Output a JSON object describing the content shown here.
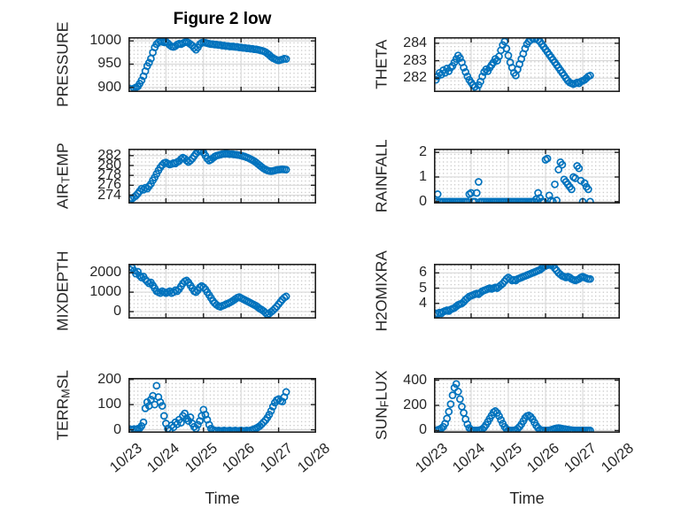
{
  "figure": {
    "title": "Figure 2 low",
    "x_axis_label": "Time",
    "x_tick_labels": [
      "10/23",
      "10/24",
      "10/25",
      "10/26",
      "10/27",
      "10/28"
    ],
    "x_tick_values": [
      0,
      1,
      2,
      3,
      4,
      5
    ],
    "x_unit": "days since 10/23 00:00",
    "colors": {
      "marker": "#0072BD",
      "grid_major": "#d8d8d8",
      "grid_minor_dots": "#b9b9b9",
      "axis_box": "#1f1f1f",
      "text": "#262626"
    }
  },
  "chart_data": [
    {
      "type": "scatter",
      "name": "PRESSURE",
      "ylabel": "PRESSURE",
      "ylabel_parts": [
        {
          "text": "PRESSURE",
          "sub": false
        }
      ],
      "yticks": [
        900,
        950,
        1000
      ],
      "ylim": [
        890,
        1008
      ],
      "xlim": [
        0,
        5
      ],
      "x_start": 0.05,
      "x_step": 0.05,
      "y": [
        897,
        895,
        898,
        900,
        902,
        908,
        915,
        924,
        935,
        946,
        953,
        962,
        975,
        986,
        993,
        997,
        999,
        998,
        997,
        998,
        995,
        991,
        988,
        987,
        989,
        992,
        994,
        993,
        995,
        997,
        998,
        996,
        993,
        990,
        985,
        981,
        986,
        993,
        996,
        997,
        996,
        995,
        994,
        993,
        993,
        992,
        992,
        991,
        991,
        990,
        990,
        989,
        989,
        988,
        988,
        988,
        987,
        987,
        986,
        986,
        985,
        985,
        984,
        984,
        983,
        983,
        982,
        982,
        981,
        980,
        979,
        978,
        976,
        973,
        970,
        966,
        963,
        961,
        959,
        958,
        959,
        960,
        962,
        961
      ]
    },
    {
      "type": "scatter",
      "name": "THETA",
      "ylabel": "THETA",
      "ylabel_parts": [
        {
          "text": "THETA",
          "sub": false
        }
      ],
      "yticks": [
        282,
        283,
        284
      ],
      "ylim": [
        281.2,
        284.35
      ],
      "xlim": [
        0,
        5
      ],
      "x_start": 0.05,
      "x_step": 0.05,
      "y": [
        281.9,
        282.1,
        282.3,
        282.2,
        282.45,
        282.3,
        282.55,
        282.4,
        282.6,
        282.7,
        282.9,
        283.1,
        283.3,
        283.15,
        282.9,
        282.6,
        282.35,
        282.1,
        281.9,
        281.75,
        281.6,
        281.5,
        281.35,
        281.6,
        281.8,
        282.1,
        282.35,
        282.5,
        282.4,
        282.6,
        282.75,
        282.9,
        283.1,
        283.0,
        283.25,
        283.6,
        283.9,
        284.1,
        283.7,
        283.3,
        282.9,
        282.6,
        282.3,
        282.15,
        282.5,
        282.8,
        283.1,
        283.4,
        283.7,
        283.95,
        284.1,
        284.2,
        284.3,
        284.25,
        284.3,
        284.2,
        284.1,
        283.95,
        283.8,
        283.65,
        283.5,
        283.35,
        283.2,
        283.05,
        282.9,
        282.75,
        282.6,
        282.45,
        282.3,
        282.15,
        282.0,
        281.85,
        281.75,
        281.7,
        281.65,
        281.7,
        281.75,
        281.7,
        281.8,
        281.85,
        281.9,
        282.0,
        282.1,
        282.15
      ]
    },
    {
      "type": "scatter",
      "name": "AIR_TEMP",
      "ylabel": "AIR_TEMP",
      "ylabel_parts": [
        {
          "text": "AIR",
          "sub": false
        },
        {
          "text": "T",
          "sub": true
        },
        {
          "text": "EMP",
          "sub": false
        }
      ],
      "yticks": [
        274,
        276,
        278,
        280,
        282
      ],
      "ylim": [
        272.3,
        283.4
      ],
      "xlim": [
        0,
        5
      ],
      "x_start": 0.05,
      "x_step": 0.05,
      "y": [
        273.4,
        273.3,
        273.6,
        273.9,
        274.3,
        274.8,
        275.3,
        275.1,
        275.5,
        275.3,
        275.8,
        276.3,
        277.0,
        277.6,
        278.3,
        279.0,
        279.6,
        280.1,
        280.5,
        280.6,
        280.4,
        280.2,
        280.3,
        280.5,
        280.4,
        280.7,
        280.9,
        281.3,
        281.6,
        281.4,
        281.0,
        280.7,
        281.0,
        281.4,
        281.9,
        282.4,
        282.8,
        283.0,
        282.9,
        282.6,
        282.0,
        281.4,
        281.0,
        281.2,
        281.5,
        281.8,
        282.0,
        282.1,
        282.2,
        282.3,
        282.35,
        282.4,
        282.35,
        282.3,
        282.3,
        282.25,
        282.2,
        282.15,
        282.1,
        282.0,
        281.9,
        281.8,
        281.65,
        281.5,
        281.3,
        281.1,
        280.9,
        280.6,
        280.3,
        280.0,
        279.7,
        279.4,
        279.2,
        279.0,
        278.9,
        278.85,
        278.9,
        279.0,
        279.1,
        279.15,
        279.2,
        279.25,
        279.2,
        279.15
      ]
    },
    {
      "type": "scatter",
      "name": "RAINFALL",
      "ylabel": "RAINFALL",
      "ylabel_parts": [
        {
          "text": "RAINFALL",
          "sub": false
        }
      ],
      "yticks": [
        0,
        1,
        2
      ],
      "ylim": [
        -0.08,
        2.15
      ],
      "xlim": [
        0,
        5
      ],
      "x_start": 0.05,
      "x_step": 0.05,
      "y": [
        0,
        0.3,
        0,
        0,
        0,
        0,
        0,
        0,
        0,
        0,
        0,
        0,
        0,
        0,
        0,
        0,
        0,
        0,
        0.3,
        0.35,
        0,
        0,
        0.35,
        0.8,
        0,
        0,
        0,
        0,
        0,
        0,
        0,
        0,
        0,
        0,
        0,
        0,
        0,
        0,
        0,
        0,
        0,
        0,
        0,
        0,
        0,
        0,
        0,
        0,
        0,
        0,
        0,
        0,
        0,
        0,
        0.1,
        0.35,
        0.15,
        0,
        0,
        1.7,
        1.75,
        0.25,
        0.05,
        0,
        0.7,
        0.05,
        1.3,
        1.6,
        1.5,
        0.9,
        0.8,
        0.7,
        0.6,
        0.5,
        1.0,
        0.95,
        1.45,
        1.35,
        0.85,
        0,
        0.75,
        0.6,
        0.5,
        0
      ]
    },
    {
      "type": "scatter",
      "name": "MIXDEPTH",
      "ylabel": "MIXDEPTH",
      "ylabel_parts": [
        {
          "text": "MIXDEPTH",
          "sub": false
        }
      ],
      "yticks": [
        0,
        1000,
        2000
      ],
      "ylim": [
        -360,
        2460
      ],
      "xlim": [
        0,
        5
      ],
      "x_start": 0.05,
      "x_step": 0.05,
      "y": [
        2150,
        2250,
        2100,
        1950,
        2050,
        1850,
        1750,
        1800,
        1650,
        1550,
        1450,
        1500,
        1350,
        1200,
        1050,
        1000,
        950,
        1050,
        1000,
        950,
        1000,
        1050,
        950,
        1000,
        1100,
        1050,
        1150,
        1300,
        1450,
        1550,
        1600,
        1500,
        1350,
        1200,
        1050,
        1000,
        1100,
        1250,
        1320,
        1250,
        1150,
        1000,
        850,
        700,
        550,
        430,
        350,
        280,
        250,
        300,
        330,
        380,
        420,
        470,
        520,
        580,
        650,
        720,
        750,
        700,
        650,
        600,
        550,
        500,
        450,
        400,
        350,
        300,
        220,
        150,
        100,
        30,
        -60,
        -150,
        -100,
        -20,
        60,
        160,
        260,
        380,
        500,
        620,
        720,
        780
      ]
    },
    {
      "type": "scatter",
      "name": "H2OMIXRA",
      "ylabel": "H2OMIXRA",
      "ylabel_parts": [
        {
          "text": "H2OMIXRA",
          "sub": false
        }
      ],
      "yticks": [
        4,
        5,
        6
      ],
      "ylim": [
        3.0,
        6.6
      ],
      "xlim": [
        0,
        5
      ],
      "x_start": 0.05,
      "x_step": 0.05,
      "y": [
        3.35,
        3.3,
        3.4,
        3.35,
        3.45,
        3.5,
        3.55,
        3.5,
        3.6,
        3.65,
        3.7,
        3.8,
        3.9,
        3.95,
        4.0,
        4.1,
        4.25,
        4.35,
        4.45,
        4.5,
        4.55,
        4.6,
        4.65,
        4.6,
        4.7,
        4.8,
        4.85,
        4.9,
        4.95,
        5.0,
        4.95,
        5.0,
        5.05,
        5.0,
        5.1,
        5.2,
        5.3,
        5.45,
        5.6,
        5.7,
        5.6,
        5.5,
        5.55,
        5.5,
        5.6,
        5.65,
        5.7,
        5.75,
        5.8,
        5.85,
        5.9,
        5.95,
        6.0,
        6.05,
        6.1,
        6.15,
        6.2,
        6.3,
        6.4,
        6.45,
        6.5,
        6.55,
        6.5,
        6.45,
        6.3,
        6.15,
        6.0,
        5.9,
        5.8,
        5.75,
        5.7,
        5.75,
        5.7,
        5.6,
        5.55,
        5.5,
        5.55,
        5.6,
        5.7,
        5.75,
        5.7,
        5.65,
        5.6,
        5.6
      ]
    },
    {
      "type": "scatter",
      "name": "TERR_MSL",
      "ylabel": "TERR_MSL",
      "ylabel_parts": [
        {
          "text": "TERR",
          "sub": false
        },
        {
          "text": "M",
          "sub": true
        },
        {
          "text": "SL",
          "sub": false
        }
      ],
      "yticks": [
        0,
        100,
        200
      ],
      "ylim": [
        -12,
        206
      ],
      "xlim": [
        0,
        5
      ],
      "x_start": 0.05,
      "x_step": 0.05,
      "y": [
        2,
        0,
        3,
        1,
        4,
        6,
        15,
        30,
        85,
        110,
        95,
        120,
        135,
        100,
        175,
        130,
        110,
        95,
        55,
        25,
        5,
        -3,
        18,
        10,
        30,
        22,
        40,
        28,
        55,
        65,
        45,
        35,
        50,
        25,
        12,
        5,
        20,
        35,
        55,
        80,
        60,
        40,
        20,
        5,
        0,
        -3,
        -4,
        -3,
        -5,
        -4,
        -3,
        -5,
        -4,
        -3,
        -5,
        -4,
        -3,
        -5,
        -4,
        -3,
        -5,
        -4,
        -3,
        -4,
        -2,
        0,
        3,
        6,
        10,
        15,
        22,
        30,
        38,
        48,
        60,
        75,
        92,
        108,
        118,
        122,
        115,
        112,
        130,
        150
      ]
    },
    {
      "type": "scatter",
      "name": "SUN_FLUX",
      "ylabel": "SUN_FLUX",
      "ylabel_parts": [
        {
          "text": "SUN",
          "sub": false
        },
        {
          "text": "F",
          "sub": true
        },
        {
          "text": "LUX",
          "sub": false
        }
      ],
      "yticks": [
        0,
        200,
        400
      ],
      "ylim": [
        -18,
        418
      ],
      "xlim": [
        0,
        5
      ],
      "x_start": 0.05,
      "x_step": 0.05,
      "y": [
        2,
        5,
        10,
        18,
        30,
        55,
        95,
        150,
        210,
        280,
        340,
        370,
        310,
        250,
        190,
        140,
        90,
        50,
        20,
        5,
        0,
        0,
        0,
        2,
        5,
        12,
        25,
        45,
        70,
        95,
        120,
        145,
        155,
        140,
        115,
        85,
        55,
        30,
        12,
        3,
        0,
        0,
        2,
        5,
        15,
        30,
        50,
        75,
        100,
        115,
        120,
        110,
        90,
        65,
        40,
        20,
        8,
        2,
        0,
        0,
        0,
        2,
        5,
        10,
        15,
        18,
        20,
        18,
        15,
        12,
        10,
        8,
        5,
        3,
        2,
        0,
        0,
        0,
        0,
        0,
        0,
        0,
        0,
        0
      ]
    }
  ]
}
